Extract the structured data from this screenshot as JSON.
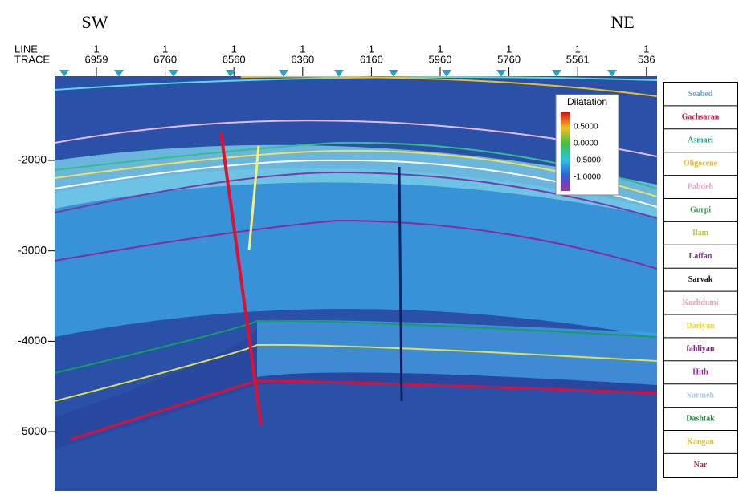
{
  "header": {
    "left": "SW",
    "right": "NE",
    "line_label": "LINE",
    "trace_label": "TRACE"
  },
  "traces": [
    {
      "line": "1",
      "trace": "6959"
    },
    {
      "line": "1",
      "trace": "6760"
    },
    {
      "line": "1",
      "trace": "6560"
    },
    {
      "line": "1",
      "trace": "6360"
    },
    {
      "line": "1",
      "trace": "6160"
    },
    {
      "line": "1",
      "trace": "5960"
    },
    {
      "line": "1",
      "trace": "5760"
    },
    {
      "line": "1",
      "trace": "5561"
    },
    {
      "line": "1",
      "trace": "536"
    }
  ],
  "depth_ticks": [
    "-2000",
    "-3000",
    "-4000",
    "-5000"
  ],
  "colorbar": {
    "title": "Dilatation",
    "ticks": [
      "0.5000",
      "0.0000",
      "-0.5000",
      "-1.0000"
    ]
  },
  "legend": [
    {
      "name": "Seabed",
      "color": "#5aa9d8"
    },
    {
      "name": "Gachsaran",
      "color": "#d8103c"
    },
    {
      "name": "Asmari",
      "color": "#1c9a8a"
    },
    {
      "name": "Oligocene",
      "color": "#e8b820"
    },
    {
      "name": "Pabdeh",
      "color": "#e8a0c8"
    },
    {
      "name": "Gurpi",
      "color": "#3a9a50"
    },
    {
      "name": "Ilam",
      "color": "#b8c840"
    },
    {
      "name": "Laffan",
      "color": "#8a2a9a"
    },
    {
      "name": "Sarvak",
      "color": "#111111"
    },
    {
      "name": "Kazhdumi",
      "color": "#f0a0b8"
    },
    {
      "name": "Dariyan",
      "color": "#f0d040"
    },
    {
      "name": "fahliyan",
      "color": "#8a1a8a"
    },
    {
      "name": "Hith",
      "color": "#9a2aa8"
    },
    {
      "name": "Surmeh",
      "color": "#a8c8e8"
    },
    {
      "name": "Dashtak",
      "color": "#1a8a3a"
    },
    {
      "name": "Kangan",
      "color": "#e0c020"
    },
    {
      "name": "Nar",
      "color": "#e01030"
    }
  ]
}
